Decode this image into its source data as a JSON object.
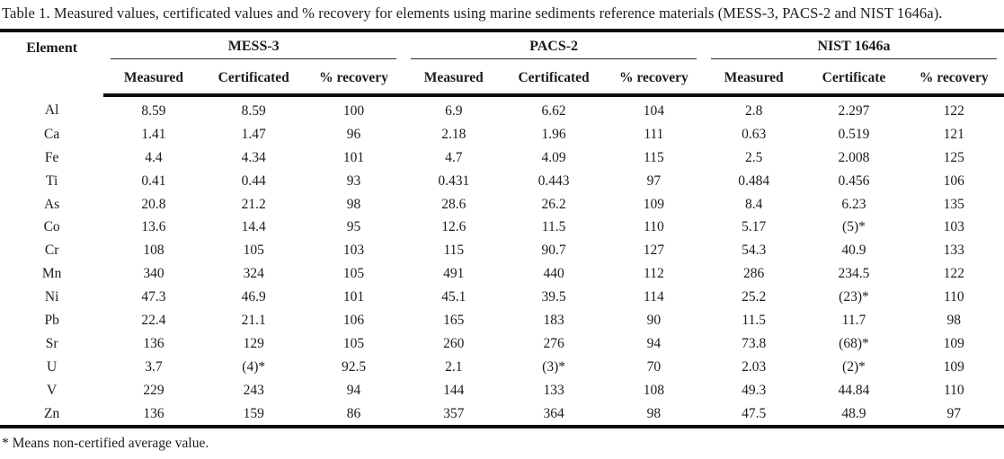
{
  "title": "Table 1. Measured values, certificated values and % recovery for elements using marine sediments reference materials (MESS-3, PACS-2 and NIST 1646a).",
  "footnote": "* Means non-certified average value.",
  "table": {
    "element_header": "Element",
    "groups": [
      {
        "name": "MESS-3",
        "subcolumns": [
          "Measured",
          "Certificated",
          "% recovery"
        ]
      },
      {
        "name": "PACS-2",
        "subcolumns": [
          "Measured",
          "Certificated",
          "% recovery"
        ]
      },
      {
        "name": "NIST 1646a",
        "subcolumns": [
          "Measured",
          "Certificate",
          "% recovery"
        ]
      }
    ],
    "rows": [
      {
        "element": "Al",
        "values": [
          "8.59",
          "8.59",
          "100",
          "6.9",
          "6.62",
          "104",
          "2.8",
          "2.297",
          "122"
        ]
      },
      {
        "element": "Ca",
        "values": [
          "1.41",
          "1.47",
          "96",
          "2.18",
          "1.96",
          "111",
          "0.63",
          "0.519",
          "121"
        ]
      },
      {
        "element": "Fe",
        "values": [
          "4.4",
          "4.34",
          "101",
          "4.7",
          "4.09",
          "115",
          "2.5",
          "2.008",
          "125"
        ]
      },
      {
        "element": "Ti",
        "values": [
          "0.41",
          "0.44",
          "93",
          "0.431",
          "0.443",
          "97",
          "0.484",
          "0.456",
          "106"
        ]
      },
      {
        "element": "As",
        "values": [
          "20.8",
          "21.2",
          "98",
          "28.6",
          "26.2",
          "109",
          "8.4",
          "6.23",
          "135"
        ]
      },
      {
        "element": "Co",
        "values": [
          "13.6",
          "14.4",
          "95",
          "12.6",
          "11.5",
          "110",
          "5.17",
          "(5)*",
          "103"
        ]
      },
      {
        "element": "Cr",
        "values": [
          "108",
          "105",
          "103",
          "115",
          "90.7",
          "127",
          "54.3",
          "40.9",
          "133"
        ]
      },
      {
        "element": "Mn",
        "values": [
          "340",
          "324",
          "105",
          "491",
          "440",
          "112",
          "286",
          "234.5",
          "122"
        ]
      },
      {
        "element": "Ni",
        "values": [
          "47.3",
          "46.9",
          "101",
          "45.1",
          "39.5",
          "114",
          "25.2",
          "(23)*",
          "110"
        ]
      },
      {
        "element": "Pb",
        "values": [
          "22.4",
          "21.1",
          "106",
          "165",
          "183",
          "90",
          "11.5",
          "11.7",
          "98"
        ]
      },
      {
        "element": "Sr",
        "values": [
          "136",
          "129",
          "105",
          "260",
          "276",
          "94",
          "73.8",
          "(68)*",
          "109"
        ]
      },
      {
        "element": "U",
        "values": [
          "3.7",
          "(4)*",
          "92.5",
          "2.1",
          "(3)*",
          "70",
          "2.03",
          "(2)*",
          "109"
        ]
      },
      {
        "element": "V",
        "values": [
          "229",
          "243",
          "94",
          "144",
          "133",
          "108",
          "49.3",
          "44.84",
          "110"
        ]
      },
      {
        "element": "Zn",
        "values": [
          "136",
          "159",
          "86",
          "357",
          "364",
          "98",
          "47.5",
          "48.9",
          "97"
        ]
      }
    ]
  }
}
